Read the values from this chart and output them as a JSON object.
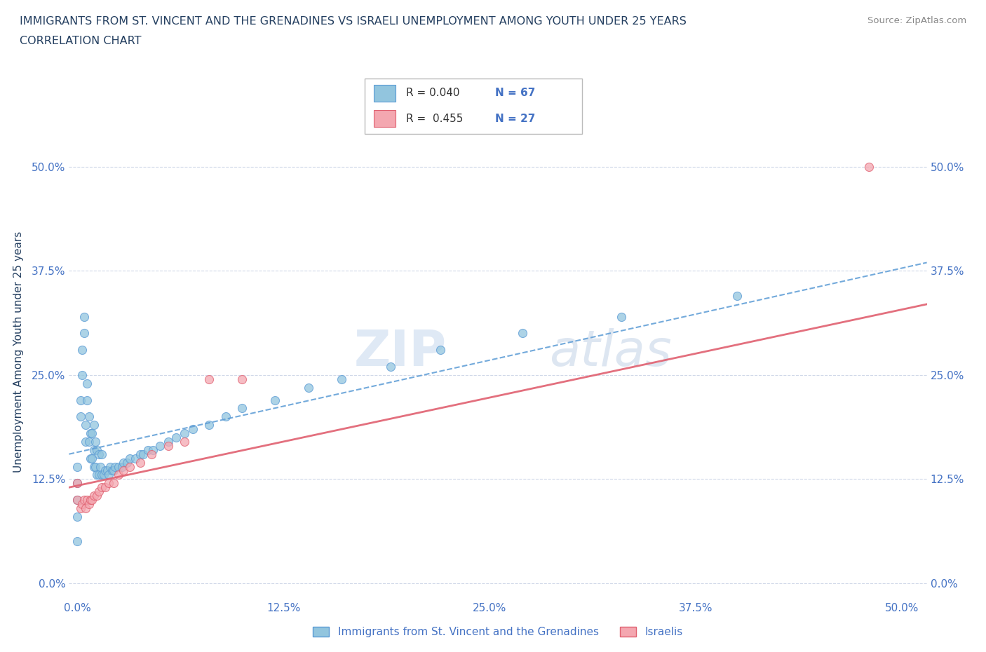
{
  "title_line1": "IMMIGRANTS FROM ST. VINCENT AND THE GRENADINES VS ISRAELI UNEMPLOYMENT AMONG YOUTH UNDER 25 YEARS",
  "title_line2": "CORRELATION CHART",
  "source_text": "Source: ZipAtlas.com",
  "ylabel": "Unemployment Among Youth under 25 years",
  "watermark_zip": "ZIP",
  "watermark_atlas": "atlas",
  "legend_label1": "Immigrants from St. Vincent and the Grenadines",
  "legend_label2": "Israelis",
  "r1": 0.04,
  "n1": 67,
  "r2": 0.455,
  "n2": 27,
  "blue_color": "#92c5de",
  "blue_edge": "#5b9bd5",
  "pink_color": "#f4a7b0",
  "pink_edge": "#e06070",
  "blue_line_color": "#5b9bd5",
  "pink_line_color": "#e06070",
  "title_color": "#243f60",
  "axis_color": "#4472c4",
  "source_color": "#888888",
  "background_color": "#ffffff",
  "grid_color": "#d0d8e8",
  "xmin": -0.005,
  "xmax": 0.515,
  "ymin": -0.02,
  "ymax": 0.575,
  "xticks": [
    0.0,
    0.125,
    0.25,
    0.375,
    0.5
  ],
  "yticks": [
    0.0,
    0.125,
    0.25,
    0.375,
    0.5
  ],
  "xtick_labels": [
    "0.0%",
    "12.5%",
    "25.0%",
    "37.5%",
    "50.0%"
  ],
  "ytick_labels": [
    "0.0%",
    "12.5%",
    "25.0%",
    "37.5%",
    "50.0%"
  ],
  "blue_scatter_x": [
    0.0,
    0.0,
    0.0,
    0.0,
    0.0,
    0.002,
    0.002,
    0.003,
    0.003,
    0.004,
    0.004,
    0.005,
    0.005,
    0.006,
    0.006,
    0.007,
    0.007,
    0.008,
    0.008,
    0.009,
    0.009,
    0.01,
    0.01,
    0.01,
    0.011,
    0.011,
    0.012,
    0.012,
    0.013,
    0.013,
    0.014,
    0.015,
    0.015,
    0.016,
    0.017,
    0.018,
    0.019,
    0.02,
    0.021,
    0.022,
    0.023,
    0.025,
    0.027,
    0.028,
    0.03,
    0.032,
    0.035,
    0.038,
    0.04,
    0.043,
    0.046,
    0.05,
    0.055,
    0.06,
    0.065,
    0.07,
    0.08,
    0.09,
    0.1,
    0.12,
    0.14,
    0.16,
    0.19,
    0.22,
    0.27,
    0.33,
    0.4
  ],
  "blue_scatter_y": [
    0.05,
    0.08,
    0.1,
    0.12,
    0.14,
    0.2,
    0.22,
    0.25,
    0.28,
    0.3,
    0.32,
    0.17,
    0.19,
    0.22,
    0.24,
    0.17,
    0.2,
    0.15,
    0.18,
    0.15,
    0.18,
    0.14,
    0.16,
    0.19,
    0.14,
    0.17,
    0.13,
    0.16,
    0.13,
    0.155,
    0.14,
    0.13,
    0.155,
    0.13,
    0.135,
    0.135,
    0.13,
    0.14,
    0.135,
    0.135,
    0.14,
    0.14,
    0.14,
    0.145,
    0.145,
    0.15,
    0.15,
    0.155,
    0.155,
    0.16,
    0.16,
    0.165,
    0.17,
    0.175,
    0.18,
    0.185,
    0.19,
    0.2,
    0.21,
    0.22,
    0.235,
    0.245,
    0.26,
    0.28,
    0.3,
    0.32,
    0.345
  ],
  "pink_scatter_x": [
    0.0,
    0.0,
    0.002,
    0.003,
    0.004,
    0.005,
    0.006,
    0.007,
    0.008,
    0.009,
    0.01,
    0.012,
    0.013,
    0.015,
    0.017,
    0.019,
    0.022,
    0.025,
    0.028,
    0.032,
    0.038,
    0.045,
    0.055,
    0.065,
    0.08,
    0.1,
    0.48
  ],
  "pink_scatter_y": [
    0.1,
    0.12,
    0.09,
    0.095,
    0.1,
    0.09,
    0.1,
    0.095,
    0.1,
    0.1,
    0.105,
    0.105,
    0.11,
    0.115,
    0.115,
    0.12,
    0.12,
    0.13,
    0.135,
    0.14,
    0.145,
    0.155,
    0.165,
    0.17,
    0.245,
    0.245,
    0.5
  ],
  "blue_trend_x": [
    -0.005,
    0.515
  ],
  "blue_trend_y": [
    0.155,
    0.385
  ],
  "pink_trend_x": [
    -0.005,
    0.515
  ],
  "pink_trend_y": [
    0.115,
    0.335
  ]
}
